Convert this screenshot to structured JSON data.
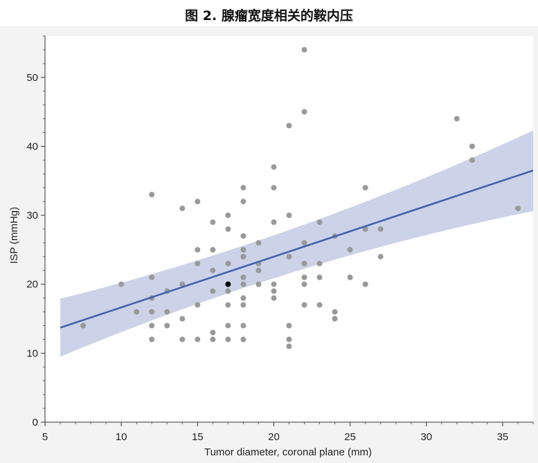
{
  "title": "图 2. 腺瘤宽度相关的鞍内压",
  "colors": {
    "page_background": "#f3f3f3",
    "plot_background": "#ffffff",
    "point": "#999999",
    "highlight_point": "#000000",
    "fit_line": "#3f5fae",
    "confidence_band": "#c9d0e6"
  },
  "chart_data": {
    "type": "scatter",
    "title": "",
    "xlabel": "Tumor diameter, coronal plane (mm)",
    "ylabel": "ISP (mmHg)",
    "xlim": [
      5,
      37
    ],
    "ylim": [
      0,
      56
    ],
    "xticks": [
      5,
      10,
      15,
      20,
      25,
      30,
      35
    ],
    "yticks": [
      0,
      10,
      20,
      30,
      40,
      50
    ],
    "grid": false,
    "points": [
      [
        7.5,
        14
      ],
      [
        10,
        20
      ],
      [
        11,
        16
      ],
      [
        12,
        33
      ],
      [
        12,
        21
      ],
      [
        12,
        18
      ],
      [
        12,
        16
      ],
      [
        12,
        14
      ],
      [
        12,
        12
      ],
      [
        13,
        19
      ],
      [
        13,
        16
      ],
      [
        13,
        14
      ],
      [
        14,
        31
      ],
      [
        14,
        20
      ],
      [
        14,
        15
      ],
      [
        14,
        12
      ],
      [
        15,
        32
      ],
      [
        15,
        25
      ],
      [
        15,
        23
      ],
      [
        15,
        17
      ],
      [
        15,
        12
      ],
      [
        16,
        29
      ],
      [
        16,
        25
      ],
      [
        16,
        22
      ],
      [
        16,
        19
      ],
      [
        16,
        13
      ],
      [
        16,
        12
      ],
      [
        17,
        30
      ],
      [
        17,
        28
      ],
      [
        17,
        23
      ],
      [
        17,
        19
      ],
      [
        17,
        17
      ],
      [
        17,
        14
      ],
      [
        17,
        12
      ],
      [
        18,
        34
      ],
      [
        18,
        32
      ],
      [
        18,
        27
      ],
      [
        18,
        25
      ],
      [
        18,
        24
      ],
      [
        18,
        21
      ],
      [
        18,
        20
      ],
      [
        18,
        18
      ],
      [
        18,
        17
      ],
      [
        18,
        14
      ],
      [
        18,
        12
      ],
      [
        19,
        26
      ],
      [
        19,
        23
      ],
      [
        19,
        22
      ],
      [
        19,
        20
      ],
      [
        20,
        37
      ],
      [
        20,
        34
      ],
      [
        20,
        29
      ],
      [
        20,
        20
      ],
      [
        20,
        19
      ],
      [
        20,
        18
      ],
      [
        21,
        43
      ],
      [
        21,
        30
      ],
      [
        21,
        24
      ],
      [
        21,
        14
      ],
      [
        21,
        12
      ],
      [
        21,
        11
      ],
      [
        22,
        54
      ],
      [
        22,
        45
      ],
      [
        22,
        26
      ],
      [
        22,
        23
      ],
      [
        22,
        21
      ],
      [
        22,
        20
      ],
      [
        22,
        17
      ],
      [
        23,
        29
      ],
      [
        23,
        23
      ],
      [
        23,
        21
      ],
      [
        23,
        17
      ],
      [
        24,
        27
      ],
      [
        24,
        16
      ],
      [
        24,
        15
      ],
      [
        25,
        25
      ],
      [
        25,
        21
      ],
      [
        26,
        34
      ],
      [
        26,
        28
      ],
      [
        26,
        20
      ],
      [
        27,
        28
      ],
      [
        27,
        24
      ],
      [
        32,
        44
      ],
      [
        33,
        40
      ],
      [
        33,
        38
      ],
      [
        36,
        31
      ]
    ],
    "highlight_point": [
      17,
      20
    ],
    "fit": {
      "x": [
        6,
        37
      ],
      "y": [
        13.7,
        36.5
      ],
      "band_lower": [
        9.5,
        30.6
      ],
      "band_upper": [
        17.9,
        42.3
      ]
    }
  }
}
